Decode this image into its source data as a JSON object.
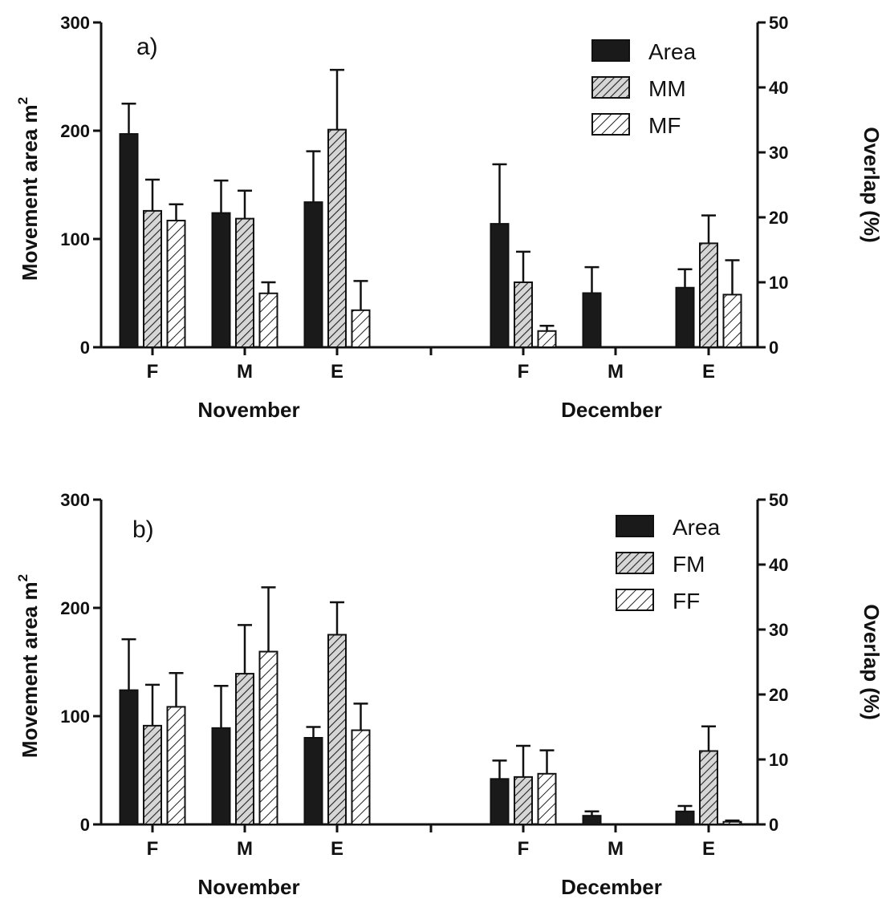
{
  "chart_data": [
    {
      "type": "bar",
      "panel_label": "a)",
      "ylabel": "Movement area m",
      "ylabel_superscript": "2",
      "y2label": "Overlap (%)",
      "ylim": [
        0,
        300
      ],
      "y2lim": [
        0,
        50
      ],
      "yticks": [
        "0",
        "100",
        "200",
        "300"
      ],
      "y2ticks": [
        "0",
        "10",
        "20",
        "30",
        "40",
        "50"
      ],
      "months": [
        "November",
        "December"
      ],
      "categories": [
        "F",
        "M",
        "E",
        "F",
        "M",
        "E"
      ],
      "legend_position": "top-right",
      "series": [
        {
          "name": "Area",
          "axis": "left",
          "values": [
            197,
            124,
            134,
            114,
            50,
            55
          ],
          "errors": [
            28,
            30,
            47,
            55,
            24,
            17
          ]
        },
        {
          "name": "MM",
          "axis": "right",
          "values": [
            21.0,
            19.8,
            33.5,
            10.0,
            null,
            16.0
          ],
          "errors": [
            4.8,
            4.3,
            9.2,
            4.7,
            null,
            4.3
          ]
        },
        {
          "name": "MF",
          "axis": "right",
          "values": [
            19.5,
            8.3,
            5.7,
            2.5,
            null,
            8.1
          ],
          "errors": [
            2.5,
            1.7,
            4.5,
            0.8,
            null,
            5.3
          ]
        }
      ]
    },
    {
      "type": "bar",
      "panel_label": "b)",
      "ylabel": "Movement area m",
      "ylabel_superscript": "2",
      "y2label": "Overlap (%)",
      "ylim": [
        0,
        300
      ],
      "y2lim": [
        0,
        50
      ],
      "yticks": [
        "0",
        "100",
        "200",
        "300"
      ],
      "y2ticks": [
        "0",
        "10",
        "20",
        "30",
        "40",
        "50"
      ],
      "months": [
        "November",
        "December"
      ],
      "categories": [
        "F",
        "M",
        "E",
        "F",
        "M",
        "E"
      ],
      "legend_position": "top-right",
      "series": [
        {
          "name": "Area",
          "axis": "left",
          "values": [
            124,
            89,
            80,
            42,
            8,
            12
          ],
          "errors": [
            47,
            39,
            10,
            17,
            4,
            5
          ]
        },
        {
          "name": "FM",
          "axis": "right",
          "values": [
            15.2,
            23.2,
            29.2,
            7.3,
            null,
            11.3
          ],
          "errors": [
            6.3,
            7.5,
            5.0,
            4.8,
            null,
            3.8
          ]
        },
        {
          "name": "FF",
          "axis": "right",
          "values": [
            18.1,
            26.6,
            14.5,
            7.8,
            null,
            0.4
          ],
          "errors": [
            5.2,
            9.9,
            4.1,
            3.6,
            null,
            0.2
          ]
        }
      ]
    }
  ]
}
